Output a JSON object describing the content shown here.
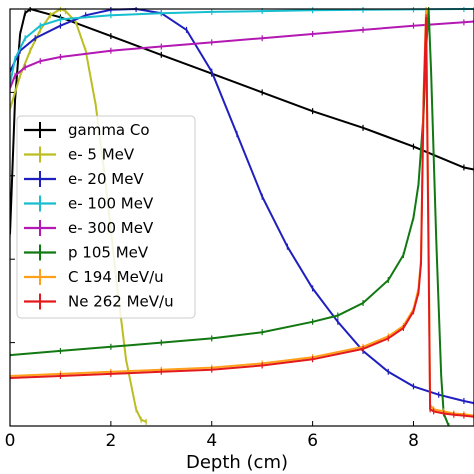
{
  "chart_data": {
    "type": "line",
    "title": "",
    "xlabel": "Depth (cm)",
    "ylabel": "",
    "xlim": [
      0,
      9.2
    ],
    "ylim": [
      0,
      1.0
    ],
    "x_ticks": [
      0,
      2,
      4,
      6,
      8
    ],
    "y_ticks": [
      0,
      0.2,
      0.4,
      0.6,
      0.8,
      1.0
    ],
    "grid": false,
    "legend": "left",
    "series": [
      {
        "name": "gamma Co",
        "color": "#000000",
        "x": [
          0,
          0.1,
          0.2,
          0.3,
          0.4,
          1,
          2,
          3,
          4,
          5,
          6,
          7,
          8,
          9,
          9.2
        ],
        "y": [
          0.46,
          0.78,
          0.94,
          0.99,
          1.0,
          0.98,
          0.935,
          0.89,
          0.845,
          0.8,
          0.755,
          0.715,
          0.67,
          0.62,
          0.615
        ]
      },
      {
        "name": "e- 5 MeV",
        "color": "#bcbd22",
        "x": [
          0,
          0.2,
          0.4,
          0.6,
          0.8,
          1.0,
          1.1,
          1.3,
          1.5,
          1.7,
          1.9,
          2.1,
          2.3,
          2.5,
          2.6,
          2.7
        ],
        "y": [
          0.76,
          0.84,
          0.9,
          0.95,
          0.985,
          1.0,
          0.995,
          0.97,
          0.9,
          0.77,
          0.58,
          0.36,
          0.16,
          0.04,
          0.015,
          0.01
        ]
      },
      {
        "name": "e- 20 MeV",
        "color": "#1f1fbf",
        "x": [
          0,
          0.2,
          0.5,
          1.0,
          1.5,
          2.0,
          2.5,
          3.0,
          3.5,
          4.0,
          4.5,
          5.0,
          5.5,
          6.0,
          6.5,
          7.0,
          7.5,
          8.0,
          8.5,
          9.0,
          9.2
        ],
        "y": [
          0.85,
          0.9,
          0.93,
          0.96,
          0.985,
          0.998,
          1.0,
          0.99,
          0.95,
          0.85,
          0.7,
          0.55,
          0.43,
          0.33,
          0.25,
          0.18,
          0.13,
          0.095,
          0.075,
          0.06,
          0.055
        ]
      },
      {
        "name": "e- 100 MeV",
        "color": "#17becf",
        "x": [
          0,
          0.1,
          0.3,
          0.6,
          1,
          2,
          3,
          4,
          5,
          6,
          7,
          8,
          9,
          9.2
        ],
        "y": [
          0.82,
          0.88,
          0.93,
          0.96,
          0.975,
          0.985,
          0.99,
          0.993,
          0.995,
          0.997,
          0.998,
          0.999,
          1.0,
          1.0
        ]
      },
      {
        "name": "e- 300 MeV",
        "color": "#b318b3",
        "x": [
          0,
          0.1,
          0.3,
          0.6,
          1,
          2,
          3,
          4,
          5,
          6,
          7,
          8,
          9,
          9.2
        ],
        "y": [
          0.81,
          0.84,
          0.86,
          0.875,
          0.885,
          0.9,
          0.91,
          0.92,
          0.93,
          0.94,
          0.95,
          0.96,
          0.968,
          0.97
        ]
      },
      {
        "name": "p 105 MeV",
        "color": "#127812",
        "x": [
          0,
          1,
          2,
          3,
          4,
          5,
          6,
          6.5,
          7,
          7.5,
          7.8,
          8.0,
          8.1,
          8.2,
          8.25,
          8.3,
          8.35,
          8.45,
          8.55,
          8.6,
          8.7
        ],
        "y": [
          0.17,
          0.18,
          0.19,
          0.2,
          0.21,
          0.225,
          0.25,
          0.265,
          0.295,
          0.35,
          0.41,
          0.5,
          0.58,
          0.75,
          0.9,
          1.0,
          0.85,
          0.45,
          0.12,
          0.03,
          0.0
        ]
      },
      {
        "name": "C 194 MeV/u",
        "color": "#ff9f1a",
        "x": [
          0,
          1,
          2,
          3,
          4,
          5,
          6,
          7,
          7.5,
          7.8,
          8.0,
          8.1,
          8.15,
          8.2,
          8.25,
          8.3,
          8.33,
          8.4,
          8.6,
          8.8,
          9.0,
          9.2
        ],
        "y": [
          0.12,
          0.125,
          0.13,
          0.135,
          0.14,
          0.15,
          0.165,
          0.19,
          0.215,
          0.24,
          0.28,
          0.33,
          0.4,
          0.8,
          1.0,
          0.45,
          0.05,
          0.04,
          0.035,
          0.03,
          0.028,
          0.025
        ]
      },
      {
        "name": "Ne 262 MeV/u",
        "color": "#e31a1c",
        "x": [
          0,
          1,
          2,
          3,
          4,
          5,
          6,
          7,
          7.5,
          7.8,
          8.0,
          8.1,
          8.15,
          8.2,
          8.25,
          8.3,
          8.33,
          8.4,
          8.6,
          8.8,
          9.0,
          9.2
        ],
        "y": [
          0.115,
          0.12,
          0.125,
          0.13,
          0.135,
          0.145,
          0.16,
          0.185,
          0.21,
          0.235,
          0.275,
          0.32,
          0.39,
          0.78,
          0.98,
          0.4,
          0.04,
          0.035,
          0.03,
          0.027,
          0.025,
          0.022
        ]
      }
    ]
  }
}
